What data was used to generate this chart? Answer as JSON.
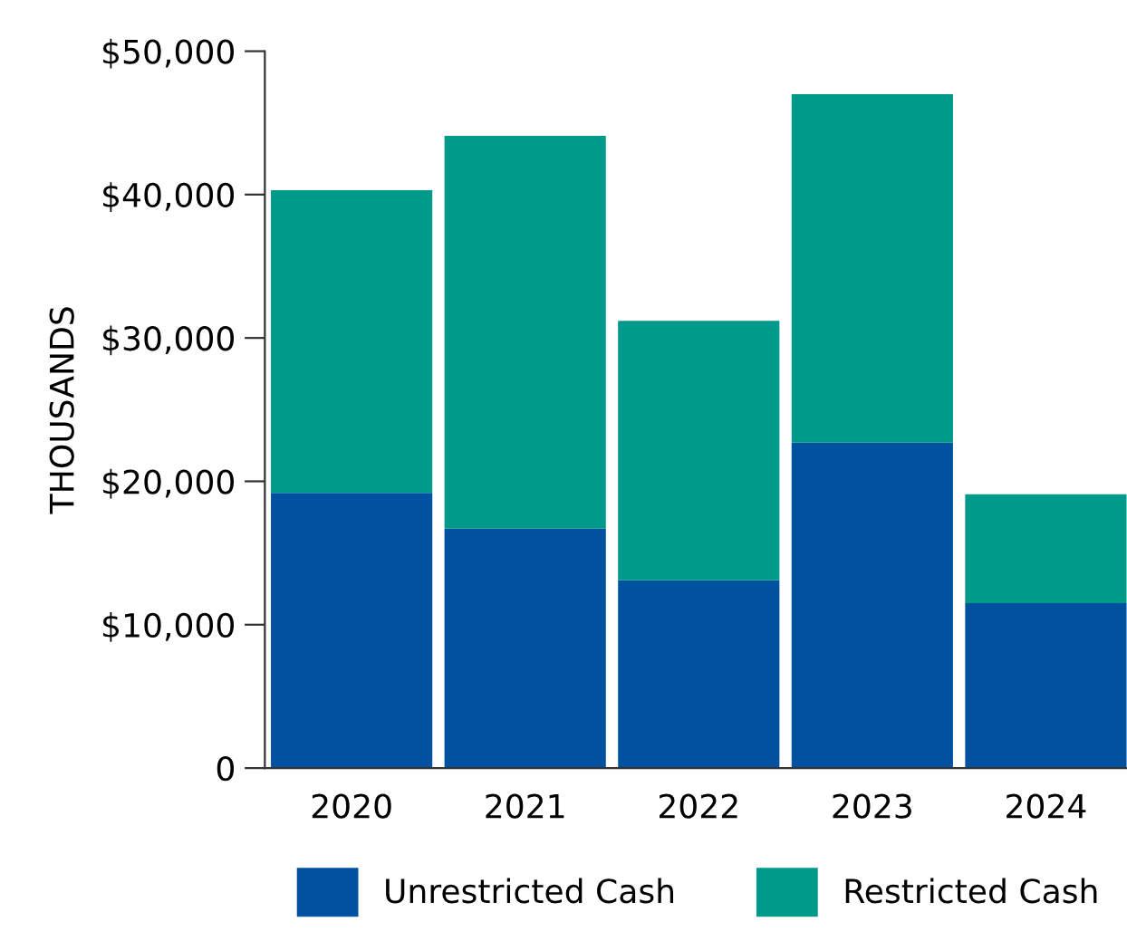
{
  "chart_data": {
    "type": "bar",
    "stacked": true,
    "ylabel": "THOUSANDS",
    "categories": [
      "2020",
      "2021",
      "2022",
      "2023",
      "2024"
    ],
    "series": [
      {
        "name": "Unrestricted Cash",
        "color": "#0052a0",
        "values": [
          19200,
          16700,
          13100,
          22700,
          11500
        ]
      },
      {
        "name": "Restricted Cash",
        "color": "#009a8a",
        "values": [
          21100,
          27400,
          18100,
          24300,
          7600
        ]
      }
    ],
    "ylim": [
      0,
      50000
    ],
    "yticks": [
      {
        "value": 0,
        "label": "0"
      },
      {
        "value": 10000,
        "label": "$10,000"
      },
      {
        "value": 20000,
        "label": "$20,000"
      },
      {
        "value": 30000,
        "label": "$30,000"
      },
      {
        "value": 40000,
        "label": "$40,000"
      },
      {
        "value": 50000,
        "label": "$50,000"
      }
    ],
    "grid": false,
    "legend": "bottom"
  }
}
